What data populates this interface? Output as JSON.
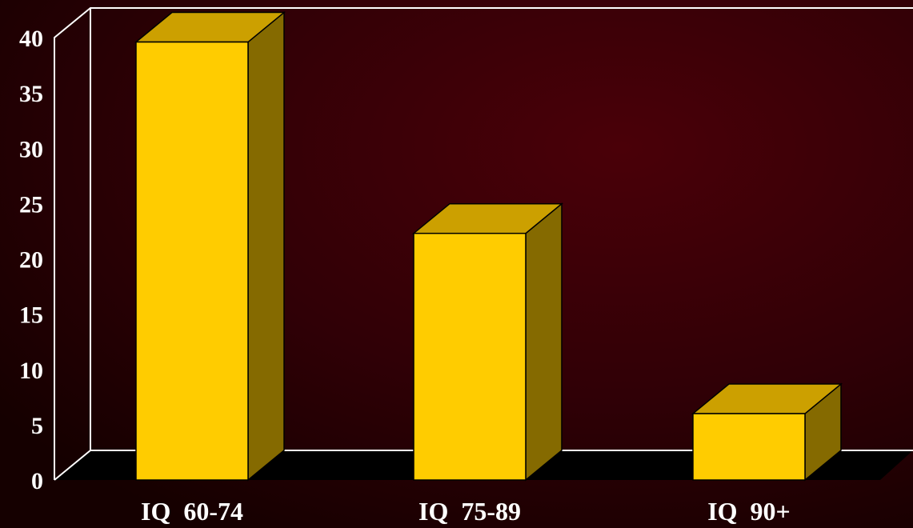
{
  "chart_data": {
    "type": "bar",
    "categories": [
      "IQ  60-74",
      "IQ  75-89",
      "IQ  90+"
    ],
    "series": [
      {
        "values": [
          39.6,
          22.3,
          6.0
        ]
      }
    ],
    "title": "",
    "xlabel": "",
    "ylabel": "",
    "ylim": [
      0,
      40
    ],
    "yticks": [
      "0",
      "5",
      "10",
      "15",
      "20",
      "25",
      "30",
      "35",
      "40"
    ],
    "grid": false,
    "legend": "none",
    "style": "3d",
    "colors": {
      "bar_front": "#FFCC00",
      "bar_top": "#CCA000",
      "bar_side": "#856A00",
      "floor": "#000000",
      "axis_lines": "#FFFFFF",
      "background_inner": "#4A0008",
      "background_outer": "#1A0000",
      "text": "#FFFFFF"
    }
  }
}
